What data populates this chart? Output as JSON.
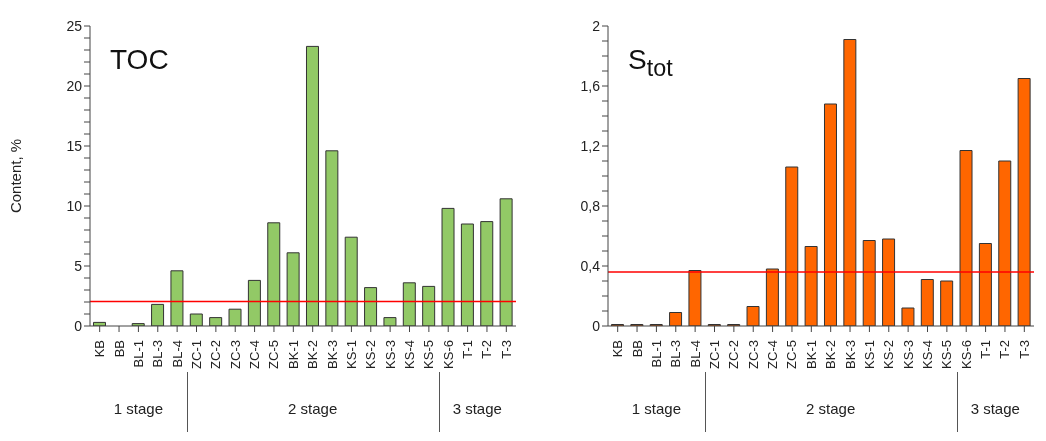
{
  "chart_data": [
    {
      "type": "bar",
      "title": "TOC",
      "ylabel": "Content, %",
      "categories": [
        "KB",
        "BB",
        "BL-1",
        "BL-3",
        "BL-4",
        "ZC-1",
        "ZC-2",
        "ZC-3",
        "ZC-4",
        "ZC-5",
        "BK-1",
        "BK-2",
        "BK-3",
        "KS-1",
        "KS-2",
        "KS-3",
        "KS-4",
        "KS-5",
        "KS-6",
        "T-1",
        "T-2",
        "T-3"
      ],
      "values": [
        0.3,
        0,
        0.2,
        1.8,
        4.6,
        1.0,
        0.7,
        1.4,
        3.8,
        8.6,
        6.1,
        23.3,
        14.6,
        7.4,
        3.2,
        0.7,
        3.6,
        3.3,
        9.8,
        8.5,
        8.7,
        10.6
      ],
      "color": "#92c966",
      "ylim": [
        0,
        25
      ],
      "yticks": [
        0,
        {
          "value": 1,
          "label": null
        },
        {
          "value": 2,
          "label": null
        },
        {
          "value": 3,
          "label": null
        },
        {
          "value": 4,
          "label": null
        },
        5,
        {
          "value": 6,
          "label": null
        },
        {
          "value": 7,
          "label": null
        },
        {
          "value": 8,
          "label": null
        },
        {
          "value": 9,
          "label": null
        },
        10,
        {
          "value": 11,
          "label": null
        },
        {
          "value": 12,
          "label": null
        },
        {
          "value": 13,
          "label": null
        },
        {
          "value": 14,
          "label": null
        },
        15,
        {
          "value": 16,
          "label": null
        },
        {
          "value": 17,
          "label": null
        },
        {
          "value": 18,
          "label": null
        },
        {
          "value": 19,
          "label": null
        },
        20,
        {
          "value": 21,
          "label": null
        },
        {
          "value": 22,
          "label": null
        },
        {
          "value": 23,
          "label": null
        },
        {
          "value": 24,
          "label": null
        },
        25
      ],
      "ref_lines": [
        {
          "axis": "y",
          "value": 2.05,
          "color": "#ff0000"
        }
      ],
      "annotations": [
        "1 stage",
        "2 stage",
        "3 stage"
      ],
      "grid": false,
      "legend": false
    },
    {
      "type": "bar",
      "title": "S$_{tot}$",
      "categories": [
        "KB",
        "BB",
        "BL-1",
        "BL-3",
        "BL-4",
        "ZC-1",
        "ZC-2",
        "ZC-3",
        "ZC-4",
        "ZC-5",
        "BK-1",
        "BK-2",
        "BK-3",
        "KS-1",
        "KS-2",
        "KS-3",
        "KS-4",
        "KS-5",
        "KS-6",
        "T-1",
        "T-2",
        "T-3"
      ],
      "values": [
        0.01,
        0.01,
        0.01,
        0.09,
        0.37,
        0.01,
        0.01,
        0.13,
        0.38,
        1.06,
        0.53,
        1.48,
        1.91,
        0.57,
        0.58,
        0.12,
        0.31,
        0.3,
        1.17,
        0.55,
        1.1,
        1.65
      ],
      "color": "#ff6600",
      "ylim": [
        0,
        2
      ],
      "yticks": [
        0,
        {
          "value": 0.1,
          "label": null
        },
        {
          "value": 0.2,
          "label": null
        },
        {
          "value": 0.3,
          "label": null
        },
        {
          "value": 0.4,
          "label": "0,4"
        },
        {
          "value": 0.5,
          "label": null
        },
        {
          "value": 0.6,
          "label": null
        },
        {
          "value": 0.7,
          "label": null
        },
        {
          "value": 0.8,
          "label": "0,8"
        },
        {
          "value": 0.9,
          "label": null
        },
        {
          "value": 1.0,
          "label": null
        },
        {
          "value": 1.1,
          "label": null
        },
        {
          "value": 1.2,
          "label": "1,2"
        },
        {
          "value": 1.3,
          "label": null
        },
        {
          "value": 1.4,
          "label": null
        },
        {
          "value": 1.5,
          "label": null
        },
        {
          "value": 1.6,
          "label": "1,6"
        },
        {
          "value": 1.7,
          "label": null
        },
        {
          "value": 1.8,
          "label": null
        },
        {
          "value": 1.9,
          "label": null
        },
        2
      ],
      "ref_lines": [
        {
          "axis": "y",
          "value": 0.36,
          "color": "#ff0000"
        }
      ],
      "annotations": [
        "1 stage",
        "2 stage",
        "3 stage"
      ],
      "grid": false,
      "legend": false
    }
  ]
}
